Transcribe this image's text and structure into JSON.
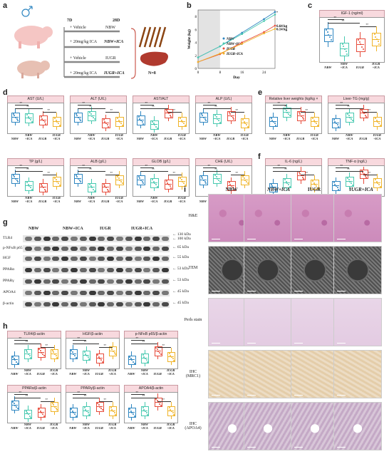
{
  "panels": {
    "a": "a",
    "b": "b",
    "c": "c",
    "d": "d",
    "e": "e",
    "f": "f",
    "g": "g",
    "h": "h",
    "i": "i"
  },
  "design": {
    "day_start": "7D",
    "day_end": "28D",
    "nbw": {
      "vehicle": "+ Vehicle",
      "vehicle_group": "NBW",
      "ica": "+ 20mg/kg ICA",
      "ica_group": "NBW+ICA"
    },
    "iugr": {
      "vehicle": "+ Vehicle",
      "vehicle_group": "IUGR",
      "ica": "+ 20mg/kg ICA",
      "ica_group": "IUGR+ICA"
    },
    "n": "N=8"
  },
  "colors": {
    "nbw": "#2e86c1",
    "nbw_ica": "#48c9b0",
    "iugr": "#e74c3c",
    "iugr_ica": "#f0b429",
    "pink_header": "#f8d9de"
  },
  "groups": [
    "NBW",
    "NBW\n+ICA",
    "IUGR",
    "IUGR\n+ICA"
  ],
  "chart_data": [
    {
      "type": "line",
      "xlabel": "Day",
      "ylabel": "Weight (kg)",
      "x": [
        0,
        8,
        16,
        24,
        28
      ],
      "xticks": [
        "0",
        "8",
        "16",
        "24"
      ],
      "yticks": [
        "0",
        "2",
        "4",
        "6",
        "8"
      ],
      "ylim": [
        0,
        9
      ],
      "series": [
        {
          "name": "NBW",
          "values": [
            1.7,
            3.4,
            5.5,
            7.6,
            8.7
          ]
        },
        {
          "name": "NBW+ICA",
          "values": [
            1.7,
            3.4,
            5.3,
            7.3,
            8.3
          ]
        },
        {
          "name": "IUGR",
          "values": [
            1.0,
            2.2,
            4.0,
            5.6,
            6.6
          ]
        },
        {
          "name": "IUGR+ICA",
          "values": [
            1.0,
            2.3,
            3.8,
            5.4,
            6.1
          ]
        }
      ],
      "annotations": [
        "6.64 kg",
        "6.14 kg"
      ]
    }
  ],
  "boxplots": {
    "igf1": {
      "title": "IGF-1 (ng/ml)",
      "med": [
        0.62,
        0.3,
        0.4,
        0.52
      ]
    },
    "ast": {
      "title": "AST (U/L)",
      "med": [
        0.55,
        0.52,
        0.45,
        0.4
      ]
    },
    "alt": {
      "title": "ALT (U/L)",
      "med": [
        0.55,
        0.6,
        0.35,
        0.4
      ]
    },
    "astalt": {
      "title": "AST/ALT",
      "med": [
        0.45,
        0.3,
        0.68,
        0.4
      ]
    },
    "alp": {
      "title": "ALP (U/L)",
      "med": [
        0.55,
        0.5,
        0.6,
        0.35
      ]
    },
    "liverw": {
      "title": "Relative liver weights (kg/kg × 100%)",
      "med": [
        0.4,
        0.72,
        0.6,
        0.4
      ]
    },
    "livertg": {
      "title": "Liver-TG (mg/g)",
      "med": [
        0.35,
        0.55,
        0.68,
        0.4
      ]
    },
    "tp": {
      "title": "TP (g/L)",
      "med": [
        0.6,
        0.35,
        0.3,
        0.5
      ]
    },
    "alb": {
      "title": "ALB (g/L)",
      "med": [
        0.6,
        0.3,
        0.3,
        0.55
      ]
    },
    "glob": {
      "title": "GLOB (g/L)",
      "med": [
        0.55,
        0.45,
        0.4,
        0.5
      ]
    },
    "che": {
      "title": "CHE (U/L)",
      "med": [
        0.55,
        0.6,
        0.35,
        0.55
      ]
    },
    "il6": {
      "title": "IL-6 (ng/L)",
      "med": [
        0.3,
        0.45,
        0.7,
        0.4
      ]
    },
    "tnfa": {
      "title": "TNF-α (ng/L)",
      "med": [
        0.35,
        0.5,
        0.75,
        0.45
      ]
    },
    "tlr4": {
      "title": "TLR4/β-actin",
      "med": [
        0.3,
        0.5,
        0.55,
        0.5
      ]
    },
    "hgf": {
      "title": "HGF/β-actin",
      "med": [
        0.5,
        0.45,
        0.35,
        0.6
      ]
    },
    "pnfkb": {
      "title": "p-NFκB p65/β-actin",
      "med": [
        0.3,
        0.35,
        0.6,
        0.4
      ]
    },
    "ppara": {
      "title": "PPARα/β-actin",
      "med": [
        0.6,
        0.3,
        0.35,
        0.55
      ]
    },
    "pparg": {
      "title": "PPARγ/β-actin",
      "med": [
        0.35,
        0.4,
        0.55,
        0.4
      ]
    },
    "apoa4": {
      "title": "APOA4/β-actin",
      "med": [
        0.35,
        0.4,
        0.7,
        0.4
      ]
    }
  },
  "western": {
    "columns": [
      "NBW",
      "NBW+ICA",
      "IUGR",
      "IUGR+ICA"
    ],
    "rows": [
      {
        "label": "TLR4",
        "kda": "← 130 kDa\n← 100 kDa"
      },
      {
        "label": "p-NFκB p65",
        "kda": "← 65 kDa"
      },
      {
        "label": "HGF",
        "kda": "← 55 kDa"
      },
      {
        "label": "PPARα",
        "kda": "← 53 kDa"
      },
      {
        "label": "PPARγ",
        "kda": "← 53 kDa"
      },
      {
        "label": "APOA4",
        "kda": "← 45 kDa"
      },
      {
        "label": "β-actin",
        "kda": "← 45 kDa"
      }
    ]
  },
  "histology": {
    "columns": [
      "NBW",
      "NBW+ICA",
      "IUGR",
      "IUGR+ICA"
    ],
    "rows": [
      "H&E",
      "TEM",
      "Perls stain",
      "IHC (MRC1)",
      "IHC (APOA4)"
    ]
  }
}
